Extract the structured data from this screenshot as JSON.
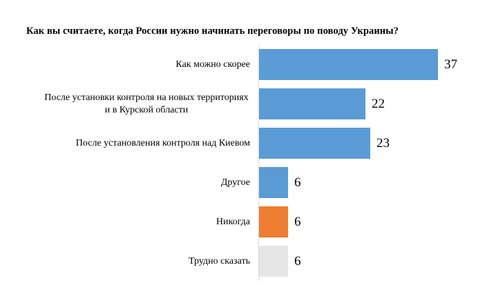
{
  "chart_data": {
    "type": "bar",
    "orientation": "horizontal",
    "title": "Как вы считаете, когда России нужно начинать переговоры по поводу Украины?",
    "categories": [
      "Как можно скорее",
      "После установки контроля на новых территориях и в Курской области",
      "После установления контроля над Киевом",
      "Другое",
      "Никогда",
      "Трудно сказать"
    ],
    "values": [
      37,
      22,
      23,
      6,
      6,
      6
    ],
    "data_labels": [
      37,
      22,
      23,
      6,
      6,
      6
    ],
    "bar_colors": [
      "#5b9bd5",
      "#5b9bd5",
      "#5b9bd5",
      "#5b9bd5",
      "#ed7d31",
      "#e7e6e6"
    ],
    "xlim": [
      0,
      40
    ],
    "xlabel": "",
    "ylabel": "",
    "legend": "none",
    "grid": false,
    "axis_line_color": "#d9d9d9",
    "background_color": "#ffffff",
    "title_color": "#000000",
    "label_color": "#000000"
  }
}
